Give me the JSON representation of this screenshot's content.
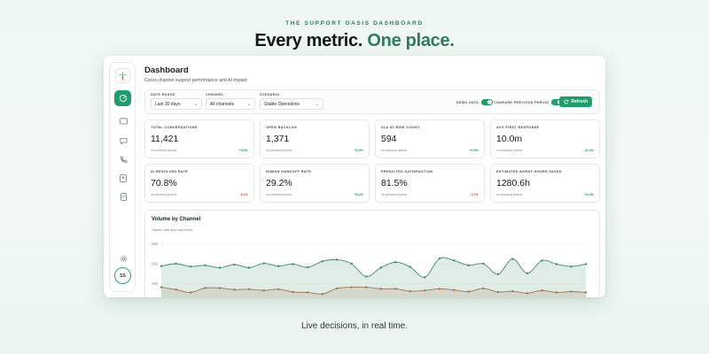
{
  "hero": {
    "eyebrow": "THE SUPPORT OASIS DASHBOARD",
    "headline_main": "Every metric.",
    "headline_accent": "One place.",
    "tagline": "Live decisions, in real time."
  },
  "colors": {
    "accent": "#1f9d6a",
    "headline_accent": "#2f7d5a",
    "positive": "#22935f",
    "negative": "#d0453c",
    "series_green": "#3e8c6a",
    "series_brown": "#a07252"
  },
  "sidebar": {
    "logo_icon": "palm-tree-icon",
    "items": [
      {
        "icon": "dashboard-icon",
        "active": true
      },
      {
        "icon": "inbox-icon",
        "active": false
      },
      {
        "icon": "chat-icon",
        "active": false
      },
      {
        "icon": "phone-icon",
        "active": false
      },
      {
        "icon": "contacts-icon",
        "active": false
      },
      {
        "icon": "document-icon",
        "active": false
      }
    ],
    "settings_icon": "gear-icon",
    "avatar_initials": "SS"
  },
  "page": {
    "title": "Dashboard",
    "subtitle": "Cross-channel support performance and AI impact"
  },
  "filters": {
    "date_range": {
      "label": "DATE RANGE",
      "value": "Last 30 days"
    },
    "channel": {
      "label": "CHANNEL",
      "value": "All channels"
    },
    "scenario": {
      "label": "SCENARIO",
      "value": "Stable Operations"
    },
    "demo_data": {
      "label": "DEMO DATA",
      "on": true
    },
    "compare": {
      "label": "COMPARE PREVIOUS PERIOD",
      "on": true
    },
    "refresh_label": "Refresh"
  },
  "kpis": [
    {
      "label": "TOTAL CONVERSATIONS",
      "value": "11,421",
      "foot": "vs previous period",
      "delta": "+8.5%",
      "trend": "pos"
    },
    {
      "label": "OPEN BACKLOG",
      "value": "1,371",
      "foot": "vs previous period",
      "delta": "+0.5%",
      "trend": "pos"
    },
    {
      "label": "SLA AT-RISK COUNT",
      "value": "594",
      "foot": "vs previous period",
      "delta": "+6.5%",
      "trend": "pos"
    },
    {
      "label": "AVG FIRST RESPONSE",
      "value": "10.0m",
      "foot": "vs previous period",
      "delta": "-11.2%",
      "trend": "pos"
    },
    {
      "label": "AI RESOLVED RATE",
      "value": "70.8%",
      "foot": "vs previous period",
      "delta": "-8.1%",
      "trend": "neg"
    },
    {
      "label": "HUMAN HANDOFF RATE",
      "value": "29.2%",
      "foot": "vs previous period",
      "delta": "+8.4%",
      "trend": "pos"
    },
    {
      "label": "PREDICTED SATISFACTION",
      "value": "81.5%",
      "foot": "vs previous period",
      "delta": "-3.1%",
      "trend": "neg"
    },
    {
      "label": "ESTIMATED AGENT HOURS SAVED",
      "value": "1280.6h",
      "foot": "vs previous period",
      "delta": "+6.4%",
      "trend": "pos"
    }
  ],
  "chart": {
    "title": "Volume by Channel",
    "subtitle": "Tickets, chat and voice trend"
  },
  "chart_data": {
    "type": "area",
    "yticks": [
      "250",
      "200",
      "150"
    ],
    "ylim": [
      120,
      260
    ],
    "grid": true,
    "x": [
      1,
      2,
      3,
      4,
      5,
      6,
      7,
      8,
      9,
      10,
      11,
      12,
      13,
      14,
      15,
      16,
      17,
      18,
      19,
      20,
      21,
      22,
      23,
      24,
      25,
      26,
      27,
      28,
      29,
      30
    ],
    "series": [
      {
        "values": [
          194,
          200,
          193,
          196,
          190,
          198,
          190,
          201,
          194,
          199,
          191,
          206,
          210,
          200,
          168,
          190,
          204,
          192,
          166,
          213,
          208,
          196,
          200,
          174,
          212,
          176,
          208,
          199,
          193,
          199
        ]
      },
      {
        "values": [
          141,
          135,
          128,
          139,
          139,
          135,
          136,
          133,
          136,
          129,
          128,
          124,
          138,
          141,
          141,
          137,
          137,
          131,
          133,
          137,
          134,
          130,
          138,
          129,
          131,
          126,
          133,
          128,
          130,
          128
        ]
      }
    ]
  }
}
